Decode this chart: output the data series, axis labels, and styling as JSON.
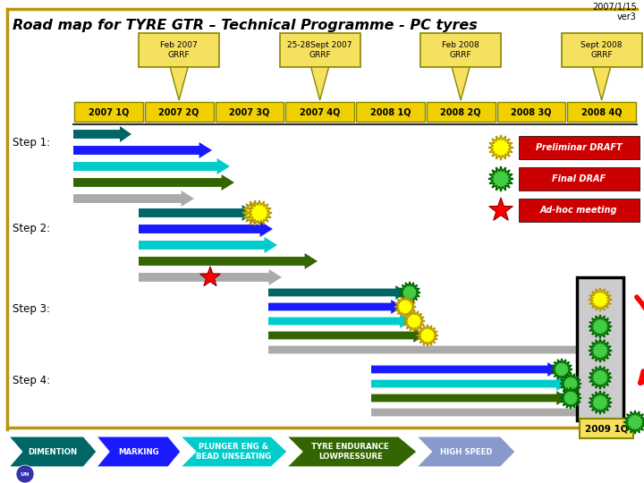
{
  "title": "Road map for TYRE GTR – Technical Programme - PC tyres",
  "date_label": "2007/1/15",
  "version_label": "ver3",
  "bg_color": "#ffffff",
  "border_color": "#b8960c",
  "quarters": [
    "2007 1Q",
    "2007 2Q",
    "2007 3Q",
    "2007 4Q",
    "2008 1Q",
    "2008 2Q",
    "2008 3Q",
    "2008 4Q"
  ],
  "meeting_labels": [
    "Feb 2007\nGRRF",
    "25-28Sept 2007\nGRRF",
    "Feb 2008\nGRRF",
    "Sept 2008\nGRRF"
  ],
  "meeting_q_idx": [
    1,
    3,
    5,
    7
  ],
  "step_labels": [
    "Step 1:",
    "Step 2:",
    "Step 3:",
    "Step 4:"
  ],
  "legend_items": [
    {
      "label": "Preliminar DRAFT",
      "sun_color": "#ffff00",
      "sun_edge": "#b8960c"
    },
    {
      "label": "Final DRAF",
      "sun_color": "#44cc44",
      "sun_edge": "#006600"
    },
    {
      "label": "Ad-hoc meeting",
      "sun_color": null,
      "sun_edge": null
    }
  ],
  "bottom_labels": [
    "DIMENTION",
    "MARKING",
    "PLUNGER ENG &\nBEAD UNSEATING",
    "TYRE ENDURANCE\nLOWPRESSURE",
    "HIGH SPEED"
  ],
  "bottom_colors": [
    "#006666",
    "#1a1aff",
    "#00cccc",
    "#336600",
    "#8899cc"
  ],
  "box2009": "2009 1Q"
}
